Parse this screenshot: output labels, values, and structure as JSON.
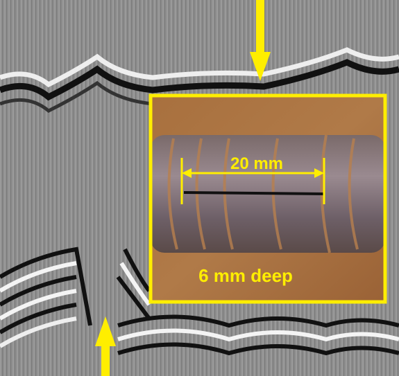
{
  "annotations": {
    "length": "20 mm",
    "depth": "6 mm deep"
  }
}
